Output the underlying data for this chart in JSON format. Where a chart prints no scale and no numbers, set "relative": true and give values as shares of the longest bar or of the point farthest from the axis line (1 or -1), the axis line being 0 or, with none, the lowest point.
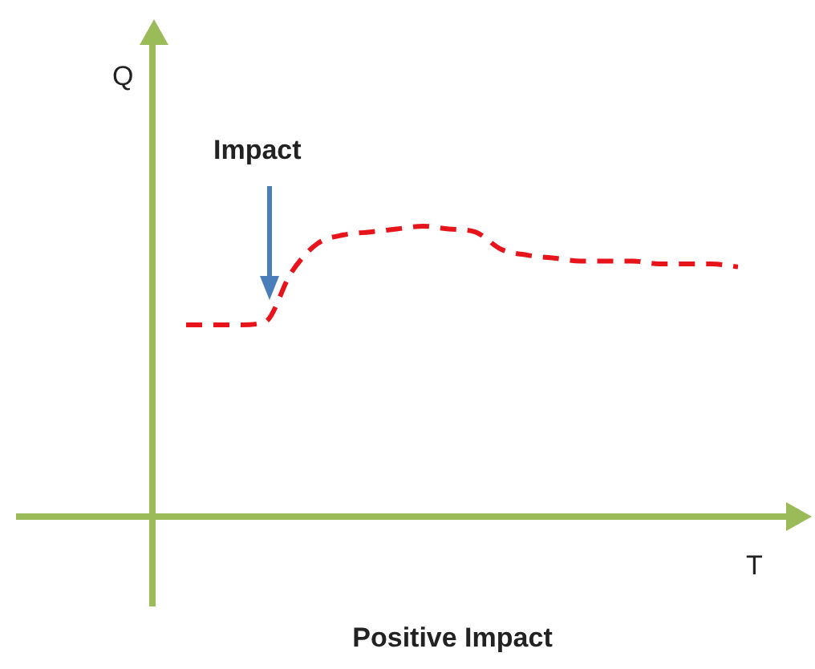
{
  "chart_data": {
    "type": "line",
    "title": "Positive Impact",
    "xlabel": "T",
    "relative": true,
    "annotations": [
      "Q",
      "Impact"
    ],
    "marker": "none",
    "line_style": "dashed",
    "legend": false,
    "grid": false,
    "categories": [
      null,
      null,
      null,
      null,
      null,
      null,
      null,
      null,
      null,
      null,
      null,
      null,
      null,
      null,
      null,
      null,
      null,
      null,
      null,
      null,
      null,
      null
    ],
    "series": [
      {
        "color": "#e8141b",
        "values": [
          0.66,
          0.66,
          0.66,
          0.67,
          0.84,
          0.94,
          0.97,
          0.98,
          0.99,
          1,
          0.99,
          0.98,
          0.92,
          0.9,
          0.89,
          0.88,
          0.88,
          0.88,
          0.87,
          0.87,
          0.87,
          0.86
        ]
      }
    ]
  }
}
